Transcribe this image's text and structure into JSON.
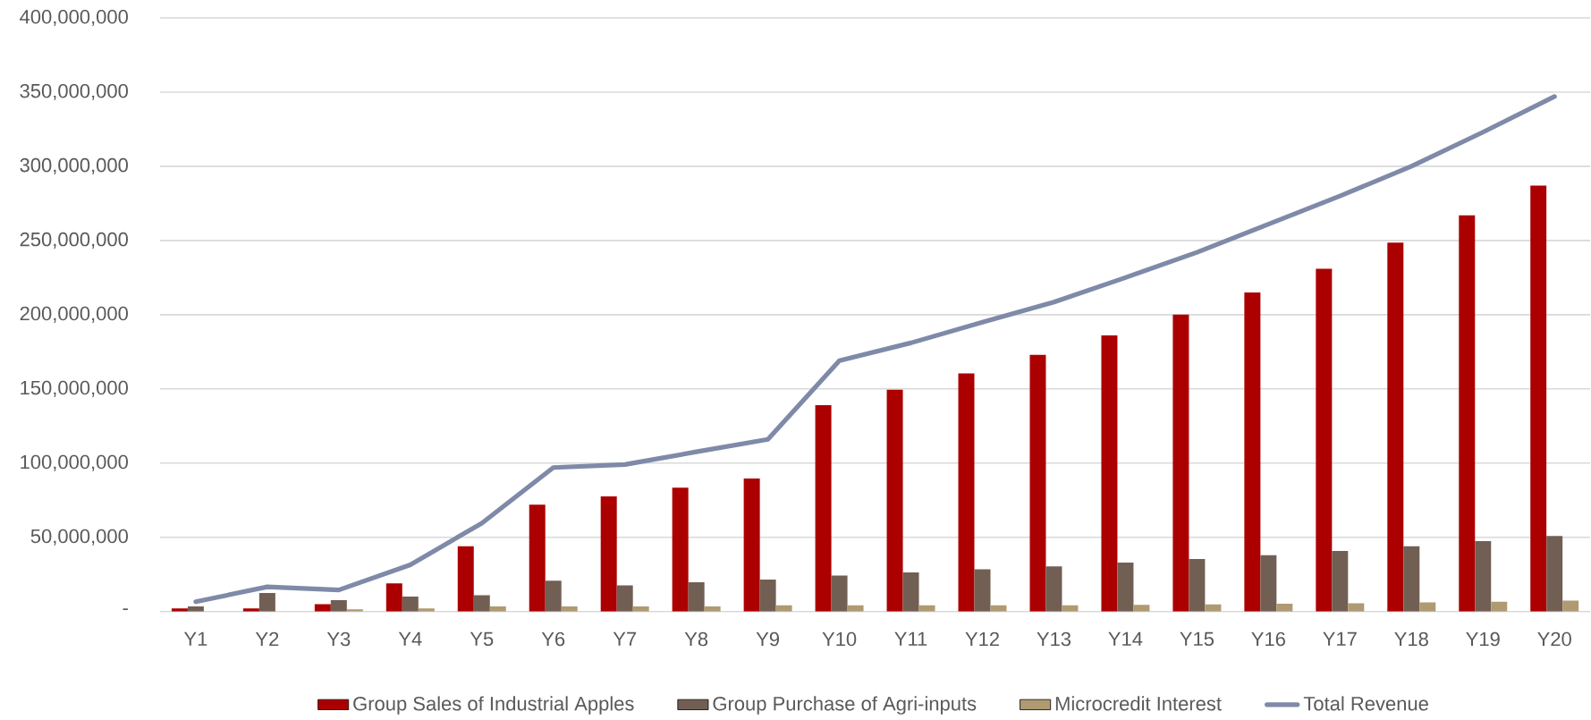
{
  "chart_data": {
    "type": "bar",
    "categories": [
      "Y1",
      "Y2",
      "Y3",
      "Y4",
      "Y5",
      "Y6",
      "Y7",
      "Y8",
      "Y9",
      "Y10",
      "Y11",
      "Y12",
      "Y13",
      "Y14",
      "Y15",
      "Y16",
      "Y17",
      "Y18",
      "Y19",
      "Y20"
    ],
    "series": [
      {
        "name": "Group Sales of Industrial Apples",
        "color": "#ac0000",
        "values": [
          2000000,
          2000000,
          5000000,
          19000000,
          44000000,
          72000000,
          77500000,
          83400000,
          89600000,
          139000000,
          149500000,
          160500000,
          173000000,
          186000000,
          200000000,
          215000000,
          231000000,
          248500000,
          267000000,
          287000000
        ]
      },
      {
        "name": "Group Purchase of Agri-inputs",
        "color": "#725f53",
        "values": [
          3500000,
          12500000,
          7600000,
          10000000,
          11000000,
          20800000,
          17600000,
          19700000,
          21500000,
          24200000,
          26300000,
          28400000,
          30400000,
          32900000,
          35300000,
          38000000,
          40800000,
          44000000,
          47400000,
          50900000
        ]
      },
      {
        "name": "Microcredit Interest",
        "color": "#b09a72",
        "values": [
          null,
          null,
          1400000,
          2000000,
          3500000,
          3500000,
          3500000,
          3500000,
          4200000,
          4200000,
          4200000,
          4200000,
          4200000,
          4500000,
          4800000,
          5200000,
          5500000,
          6200000,
          6600000,
          7300000
        ]
      },
      {
        "name": "Total Revenue",
        "color": "#7f8aa8",
        "type": "line",
        "values": [
          6600000,
          16600000,
          14500000,
          31500000,
          59500000,
          97000000,
          99000000,
          107600000,
          116000000,
          169000000,
          181000000,
          195000000,
          208500000,
          225000000,
          242000000,
          261000000,
          280000000,
          300000000,
          323000000,
          347000000
        ]
      }
    ],
    "ylim": [
      0,
      400000000
    ],
    "yticks": [
      {
        "value": 0,
        "label": "-"
      },
      {
        "value": 50000000,
        "label": "50,000,000"
      },
      {
        "value": 100000000,
        "label": "100,000,000"
      },
      {
        "value": 150000000,
        "label": "150,000,000"
      },
      {
        "value": 200000000,
        "label": "200,000,000"
      },
      {
        "value": 250000000,
        "label": "250,000,000"
      },
      {
        "value": 300000000,
        "label": "300,000,000"
      },
      {
        "value": 350000000,
        "label": "350,000,000"
      },
      {
        "value": 400000000,
        "label": "400,000,000"
      }
    ],
    "grid": "y",
    "legend": "bottom"
  }
}
